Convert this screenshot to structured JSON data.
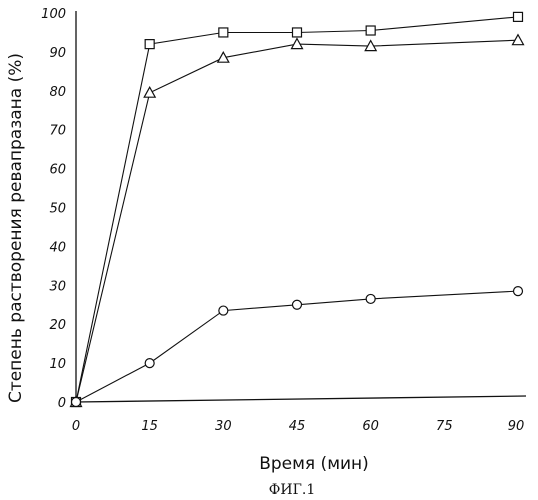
{
  "chart_data": {
    "type": "line",
    "title": "",
    "xlabel": "Время (мин)",
    "ylabel": "Степень растворения ревапразана (%)",
    "xlim": [
      0,
      90
    ],
    "ylim": [
      0,
      100
    ],
    "xticks": [
      "0",
      "15",
      "30",
      "45",
      "60",
      "75",
      "90"
    ],
    "yticks": [
      "0",
      "10",
      "20",
      "30",
      "40",
      "50",
      "60",
      "70",
      "80",
      "90",
      "100"
    ],
    "grid": false,
    "legend": "none",
    "series": [
      {
        "marker": "square",
        "x": [
          0,
          15,
          30,
          45,
          60,
          90
        ],
        "y": [
          0,
          92,
          95,
          95,
          95.5,
          99
        ]
      },
      {
        "marker": "triangle",
        "x": [
          0,
          15,
          30,
          45,
          60,
          90
        ],
        "y": [
          0,
          79.5,
          88.5,
          92,
          91.5,
          93
        ]
      },
      {
        "marker": "circle",
        "x": [
          0,
          15,
          30,
          45,
          60,
          90
        ],
        "y": [
          0,
          10,
          23.5,
          25,
          26.5,
          28.5
        ]
      }
    ]
  },
  "caption": "ФИГ.1"
}
